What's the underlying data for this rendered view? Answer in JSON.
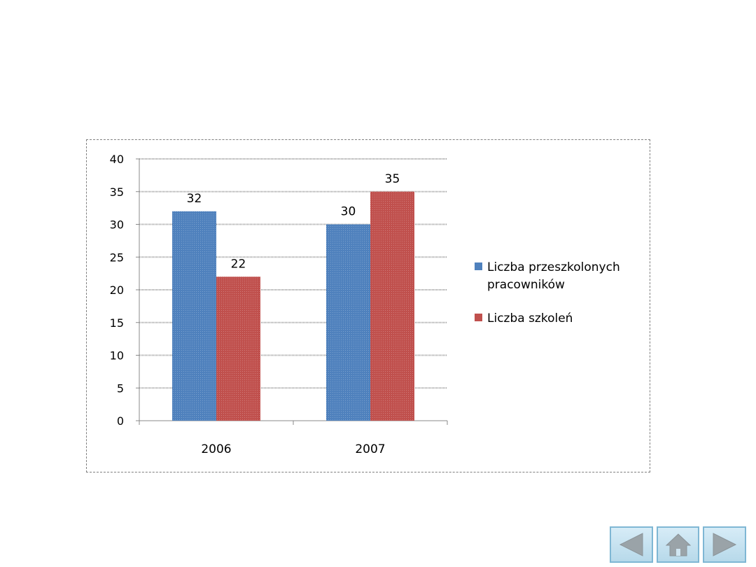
{
  "chart_data": {
    "type": "bar",
    "categories": [
      "2006",
      "2007"
    ],
    "series": [
      {
        "name": "Liczba przeszkolonych pracowników",
        "legend_lines": [
          "Liczba przeszkolonych",
          "pracowników"
        ],
        "color": "#4f81bd",
        "values": [
          32,
          30
        ]
      },
      {
        "name": "Liczba szkoleń",
        "legend_lines": [
          "Liczba szkoleń"
        ],
        "color": "#c0504d",
        "values": [
          22,
          35
        ]
      }
    ],
    "ylim": [
      0,
      40
    ],
    "yticks": [
      "0",
      "5",
      "10",
      "15",
      "20",
      "25",
      "30",
      "35",
      "40"
    ],
    "data_labels": true,
    "grid": true,
    "legend_position": "right",
    "title": "",
    "xlabel": "",
    "ylabel": ""
  },
  "navigation": {
    "buttons": [
      {
        "name": "prev-button",
        "icon": "triangle-left-icon"
      },
      {
        "name": "home-button",
        "icon": "house-icon"
      },
      {
        "name": "next-button",
        "icon": "triangle-right-icon"
      }
    ],
    "icon_color": "#9aa3a8"
  }
}
